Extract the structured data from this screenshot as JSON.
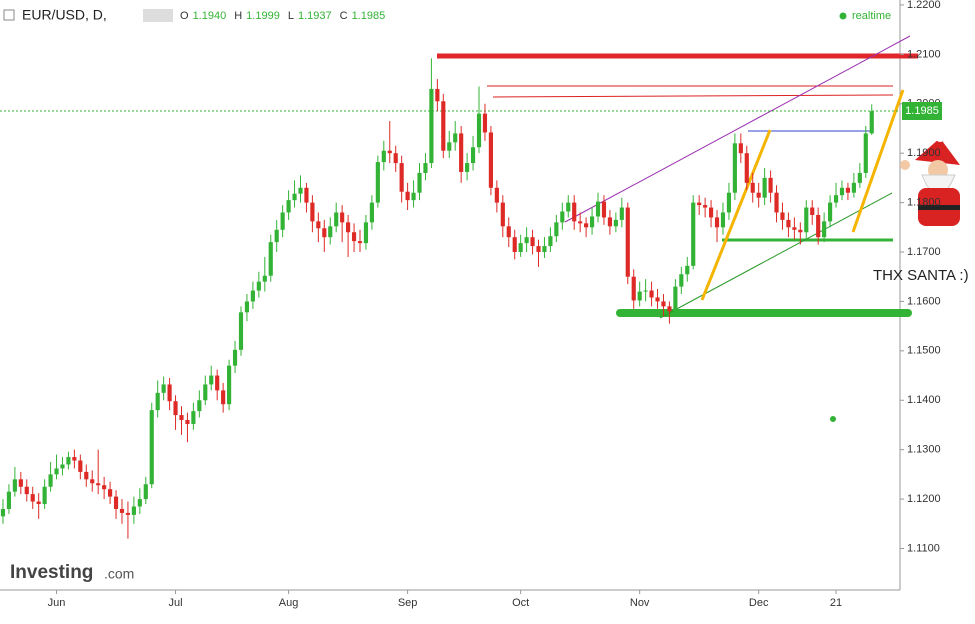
{
  "chart_data": {
    "type": "candlestick",
    "title": "EUR/USD, D,",
    "ohlc_labels": [
      {
        "key": "O",
        "text": "1.1940"
      },
      {
        "key": "H",
        "text": "1.1999"
      },
      {
        "key": "L",
        "text": "1.1937"
      },
      {
        "key": "C",
        "text": "1.1985"
      }
    ],
    "status": "realtime",
    "annotation": "THX SANTA :)",
    "watermark": {
      "brand": "Investing",
      "suffix": ".com"
    },
    "up_color": "#33b336",
    "down_color": "#dd2a26",
    "xlim": [
      -0.5,
      150.75
    ],
    "xticks": [
      {
        "value": 9,
        "label": "Jun"
      },
      {
        "value": 29,
        "label": "Jul"
      },
      {
        "value": 48,
        "label": "Aug"
      },
      {
        "value": 68,
        "label": "Sep"
      },
      {
        "value": 87,
        "label": "Oct"
      },
      {
        "value": 107,
        "label": "Nov"
      },
      {
        "value": 127,
        "label": "Dec"
      },
      {
        "value": 140,
        "label": "21"
      }
    ],
    "ylim": [
      1.1016,
      1.221
    ],
    "yticks": [
      {
        "value": 1.11,
        "label": "1.1100"
      },
      {
        "value": 1.12,
        "label": "1.1200"
      },
      {
        "value": 1.13,
        "label": "1.1300"
      },
      {
        "value": 1.14,
        "label": "1.1400"
      },
      {
        "value": 1.15,
        "label": "1.1500"
      },
      {
        "value": 1.16,
        "label": "1.1600"
      },
      {
        "value": 1.17,
        "label": "1.1700"
      },
      {
        "value": 1.18,
        "label": "1.1800"
      },
      {
        "value": 1.19,
        "label": "1.1900"
      },
      {
        "value": 1.2,
        "label": "1.2000"
      },
      {
        "value": 1.21,
        "label": "1.2100"
      },
      {
        "value": 1.22,
        "label": "1.2200"
      }
    ],
    "open": [
      1.1165,
      1.118,
      1.1215,
      1.124,
      1.1225,
      1.121,
      1.1195,
      1.119,
      1.1225,
      1.125,
      1.1262,
      1.127,
      1.1285,
      1.1278,
      1.1255,
      1.124,
      1.1232,
      1.1228,
      1.122,
      1.1205,
      1.118,
      1.1172,
      1.1168,
      1.1185,
      1.12,
      1.123,
      1.138,
      1.1415,
      1.1432,
      1.1398,
      1.137,
      1.136,
      1.1352,
      1.1378,
      1.14,
      1.1432,
      1.145,
      1.142,
      1.1392,
      1.147,
      1.1502,
      1.1578,
      1.16,
      1.1622,
      1.164,
      1.1652,
      1.172,
      1.1745,
      1.178,
      1.1805,
      1.1818,
      1.183,
      1.18,
      1.1762,
      1.1748,
      1.173,
      1.1752,
      1.178,
      1.176,
      1.174,
      1.1722,
      1.1718,
      1.176,
      1.18,
      1.1882,
      1.1905,
      1.19,
      1.188,
      1.1822,
      1.1805,
      1.182,
      1.186,
      1.188,
      1.203,
      1.2005,
      1.1905,
      1.1922,
      1.194,
      1.1862,
      1.188,
      1.1912,
      1.198,
      1.1942,
      1.183,
      1.18,
      1.1752,
      1.173,
      1.17,
      1.1718,
      1.173,
      1.1712,
      1.17,
      1.1712,
      1.1732,
      1.176,
      1.1782,
      1.18,
      1.1762,
      1.1758,
      1.175,
      1.1772,
      1.1802,
      1.177,
      1.1752,
      1.1765,
      1.179,
      1.165,
      1.1602,
      1.162,
      1.1622,
      1.1608,
      1.16,
      1.159,
      1.158,
      1.163,
      1.1655,
      1.1672,
      1.18,
      1.1795,
      1.179,
      1.177,
      1.175,
      1.178,
      1.182,
      1.192,
      1.19,
      1.184,
      1.182,
      1.181,
      1.185,
      1.182,
      1.178,
      1.1765,
      1.175,
      1.1745,
      1.174,
      1.179,
      1.1775,
      1.173,
      1.1762,
      1.18,
      1.1815,
      1.183,
      1.182,
      1.184,
      1.186,
      1.194
    ],
    "high": [
      1.12,
      1.123,
      1.1265,
      1.1255,
      1.124,
      1.1225,
      1.1212,
      1.124,
      1.1275,
      1.129,
      1.1285,
      1.1296,
      1.13,
      1.129,
      1.127,
      1.1258,
      1.13,
      1.1245,
      1.1235,
      1.1218,
      1.12,
      1.1195,
      1.1205,
      1.1222,
      1.1245,
      1.1395,
      1.144,
      1.1448,
      1.1445,
      1.141,
      1.1388,
      1.1375,
      1.1395,
      1.142,
      1.145,
      1.147,
      1.1462,
      1.1435,
      1.1482,
      1.152,
      1.159,
      1.1615,
      1.164,
      1.166,
      1.169,
      1.1735,
      1.1765,
      1.1795,
      1.1825,
      1.1845,
      1.1855,
      1.184,
      1.1815,
      1.178,
      1.1765,
      1.177,
      1.18,
      1.1795,
      1.1775,
      1.1758,
      1.1745,
      1.1775,
      1.1815,
      1.1895,
      1.1925,
      1.1965,
      1.1915,
      1.1895,
      1.184,
      1.1845,
      1.188,
      1.19,
      1.2092,
      1.205,
      1.202,
      1.1945,
      1.1965,
      1.1955,
      1.19,
      1.1935,
      1.2035,
      1.2,
      1.1955,
      1.1845,
      1.1815,
      1.177,
      1.1745,
      1.1735,
      1.175,
      1.1745,
      1.1725,
      1.173,
      1.175,
      1.1775,
      1.18,
      1.1815,
      1.1815,
      1.178,
      1.177,
      1.179,
      1.182,
      1.1815,
      1.1785,
      1.178,
      1.181,
      1.18,
      1.1665,
      1.164,
      1.1645,
      1.164,
      1.1625,
      1.1615,
      1.16,
      1.1645,
      1.167,
      1.169,
      1.1815,
      1.1815,
      1.181,
      1.1805,
      1.1785,
      1.18,
      1.184,
      1.194,
      1.194,
      1.1915,
      1.186,
      1.184,
      1.187,
      1.1865,
      1.1835,
      1.18,
      1.178,
      1.177,
      1.176,
      1.1805,
      1.1805,
      1.179,
      1.178,
      1.1815,
      1.184,
      1.1845,
      1.184,
      1.186,
      1.188,
      1.1955,
      1.1999
    ],
    "low": [
      1.115,
      1.117,
      1.1205,
      1.121,
      1.1195,
      1.118,
      1.116,
      1.118,
      1.1215,
      1.124,
      1.1248,
      1.126,
      1.1262,
      1.124,
      1.1225,
      1.1215,
      1.121,
      1.12,
      1.119,
      1.116,
      1.115,
      1.112,
      1.115,
      1.117,
      1.119,
      1.1222,
      1.1365,
      1.14,
      1.138,
      1.134,
      1.133,
      1.1315,
      1.134,
      1.1365,
      1.139,
      1.142,
      1.14,
      1.1375,
      1.138,
      1.1455,
      1.149,
      1.156,
      1.1585,
      1.1608,
      1.162,
      1.164,
      1.17,
      1.173,
      1.1765,
      1.179,
      1.18,
      1.178,
      1.174,
      1.172,
      1.17,
      1.1715,
      1.174,
      1.172,
      1.169,
      1.17,
      1.17,
      1.1705,
      1.1745,
      1.179,
      1.1865,
      1.188,
      1.1862,
      1.18,
      1.1785,
      1.179,
      1.1805,
      1.1845,
      1.187,
      1.1985,
      1.189,
      1.189,
      1.1905,
      1.184,
      1.1845,
      1.1865,
      1.19,
      1.1925,
      1.1815,
      1.178,
      1.173,
      1.171,
      1.1685,
      1.169,
      1.17,
      1.1695,
      1.167,
      1.1688,
      1.17,
      1.172,
      1.1745,
      1.177,
      1.1745,
      1.174,
      1.173,
      1.1735,
      1.176,
      1.1755,
      1.1735,
      1.174,
      1.175,
      1.1635,
      1.1585,
      1.159,
      1.16,
      1.159,
      1.1585,
      1.157,
      1.1555,
      1.157,
      1.1615,
      1.164,
      1.1665,
      1.1775,
      1.177,
      1.175,
      1.172,
      1.1735,
      1.1765,
      1.1805,
      1.188,
      1.1825,
      1.18,
      1.179,
      1.1795,
      1.18,
      1.176,
      1.1745,
      1.173,
      1.1725,
      1.1715,
      1.1725,
      1.1755,
      1.1715,
      1.172,
      1.175,
      1.179,
      1.1805,
      1.1805,
      1.181,
      1.183,
      1.185,
      1.1937
    ],
    "close": [
      1.118,
      1.1215,
      1.124,
      1.1225,
      1.121,
      1.1195,
      1.119,
      1.1225,
      1.125,
      1.1262,
      1.127,
      1.1285,
      1.1278,
      1.1255,
      1.124,
      1.1232,
      1.1228,
      1.122,
      1.1205,
      1.118,
      1.1172,
      1.1168,
      1.1185,
      1.12,
      1.123,
      1.138,
      1.1415,
      1.1432,
      1.1398,
      1.137,
      1.136,
      1.1352,
      1.1378,
      1.14,
      1.1432,
      1.145,
      1.142,
      1.1392,
      1.147,
      1.1502,
      1.1578,
      1.16,
      1.1622,
      1.164,
      1.1652,
      1.172,
      1.1745,
      1.178,
      1.1805,
      1.1818,
      1.183,
      1.18,
      1.1762,
      1.1748,
      1.173,
      1.1752,
      1.178,
      1.176,
      1.174,
      1.1722,
      1.1718,
      1.176,
      1.18,
      1.1882,
      1.1905,
      1.19,
      1.188,
      1.1822,
      1.1805,
      1.182,
      1.186,
      1.188,
      1.203,
      1.2005,
      1.1905,
      1.1922,
      1.194,
      1.1862,
      1.188,
      1.1912,
      1.198,
      1.1942,
      1.183,
      1.18,
      1.1752,
      1.173,
      1.17,
      1.1718,
      1.173,
      1.1712,
      1.17,
      1.1712,
      1.1732,
      1.176,
      1.1782,
      1.18,
      1.1762,
      1.1758,
      1.175,
      1.1772,
      1.1802,
      1.177,
      1.1752,
      1.1765,
      1.179,
      1.165,
      1.1602,
      1.162,
      1.1622,
      1.1608,
      1.16,
      1.159,
      1.158,
      1.163,
      1.1655,
      1.1672,
      1.18,
      1.1795,
      1.179,
      1.177,
      1.175,
      1.178,
      1.182,
      1.192,
      1.19,
      1.184,
      1.182,
      1.181,
      1.185,
      1.182,
      1.178,
      1.1765,
      1.175,
      1.1745,
      1.174,
      1.179,
      1.1775,
      1.173,
      1.1762,
      1.18,
      1.1815,
      1.183,
      1.182,
      1.184,
      1.186,
      1.194,
      1.1985
    ]
  }
}
